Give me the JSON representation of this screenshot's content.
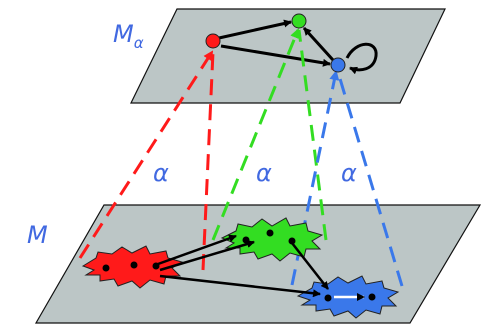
{
  "labels": {
    "top_plane": "M",
    "top_plane_sub": "α",
    "bottom_plane": "M",
    "map_red": "α",
    "map_green": "α",
    "map_blue": "α"
  },
  "colors": {
    "plane_fill": "#bcc6c6",
    "plane_stroke": "#111111",
    "label": "#4169e1",
    "red": "#ff1a1a",
    "green": "#33dd22",
    "blue": "#3a78ea",
    "arrow": "#000000"
  },
  "nodes": {
    "abstract": [
      "red",
      "green",
      "blue"
    ],
    "concrete_clusters": [
      "red",
      "green",
      "blue"
    ]
  },
  "edges": {
    "abstract": [
      {
        "from": "red",
        "to": "green"
      },
      {
        "from": "red",
        "to": "blue"
      },
      {
        "from": "blue",
        "to": "green"
      },
      {
        "from": "blue",
        "to": "blue",
        "self_loop": true
      }
    ]
  }
}
